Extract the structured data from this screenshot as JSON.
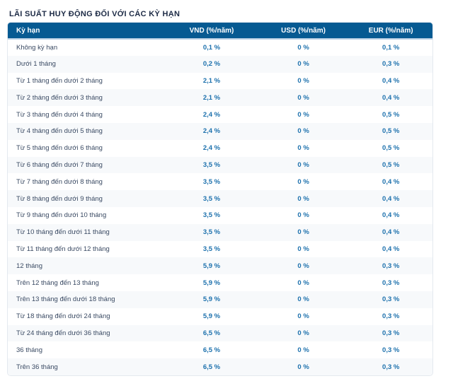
{
  "page": {
    "title": "LÃI SUẤT HUY ĐỘNG ĐỐI VỚI CÁC KỲ HẠN"
  },
  "colors": {
    "header_bg": "#065a92",
    "header_text": "#ffffff",
    "header_underline": "#b9cfe3",
    "value_text": "#1d71ad",
    "label_text": "#3a4a63",
    "stripe_bg": "#f7f9fb",
    "table_border": "#e4e9ef",
    "title_text": "#1c2a45"
  },
  "table": {
    "columns": [
      "Kỳ hạn",
      "VND (%/năm)",
      "USD (%/năm)",
      "EUR (%/năm)"
    ],
    "rows": [
      {
        "label": "Không kỳ hạn",
        "vnd": "0,1 %",
        "usd": "0 %",
        "eur": "0,1 %"
      },
      {
        "label": "Dưới 1 tháng",
        "vnd": "0,2 %",
        "usd": "0 %",
        "eur": "0,3 %"
      },
      {
        "label": "Từ 1 tháng đến dưới 2 tháng",
        "vnd": "2,1 %",
        "usd": "0 %",
        "eur": "0,4 %"
      },
      {
        "label": "Từ 2 tháng đến dưới 3 tháng",
        "vnd": "2,1 %",
        "usd": "0 %",
        "eur": "0,4 %"
      },
      {
        "label": "Từ 3 tháng đến dưới 4 tháng",
        "vnd": "2,4 %",
        "usd": "0 %",
        "eur": "0,5 %"
      },
      {
        "label": "Từ 4 tháng đến dưới 5 tháng",
        "vnd": "2,4 %",
        "usd": "0 %",
        "eur": "0,5 %"
      },
      {
        "label": "Từ 5 tháng đến dưới 6 tháng",
        "vnd": "2,4 %",
        "usd": "0 %",
        "eur": "0,5 %"
      },
      {
        "label": "Từ 6 tháng đến dưới 7 tháng",
        "vnd": "3,5 %",
        "usd": "0 %",
        "eur": "0,5 %"
      },
      {
        "label": "Từ 7 tháng đến dưới 8 tháng",
        "vnd": "3,5 %",
        "usd": "0 %",
        "eur": "0,4 %"
      },
      {
        "label": "Từ 8 tháng đến dưới 9 tháng",
        "vnd": "3,5 %",
        "usd": "0 %",
        "eur": "0,4 %"
      },
      {
        "label": "Từ 9 tháng đến dưới 10 tháng",
        "vnd": "3,5 %",
        "usd": "0 %",
        "eur": "0,4 %"
      },
      {
        "label": "Từ 10 tháng đến dưới 11 tháng",
        "vnd": "3,5 %",
        "usd": "0 %",
        "eur": "0,4 %"
      },
      {
        "label": "Từ 11 tháng đến dưới 12 tháng",
        "vnd": "3,5 %",
        "usd": "0 %",
        "eur": "0,4 %"
      },
      {
        "label": "12 tháng",
        "vnd": "5,9 %",
        "usd": "0 %",
        "eur": "0,3 %"
      },
      {
        "label": "Trên 12 tháng đến 13 tháng",
        "vnd": "5,9 %",
        "usd": "0 %",
        "eur": "0,3 %"
      },
      {
        "label": "Trên 13 tháng đến dưới 18 tháng",
        "vnd": "5,9 %",
        "usd": "0 %",
        "eur": "0,3 %"
      },
      {
        "label": "Từ 18 tháng đến dưới 24 tháng",
        "vnd": "5,9 %",
        "usd": "0 %",
        "eur": "0,3 %"
      },
      {
        "label": "Từ 24 tháng đến dưới 36 tháng",
        "vnd": "6,5 %",
        "usd": "0 %",
        "eur": "0,3 %"
      },
      {
        "label": "36 tháng",
        "vnd": "6,5 %",
        "usd": "0 %",
        "eur": "0,3 %"
      },
      {
        "label": "Trên 36 tháng",
        "vnd": "6,5 %",
        "usd": "0 %",
        "eur": "0,3 %"
      }
    ]
  }
}
